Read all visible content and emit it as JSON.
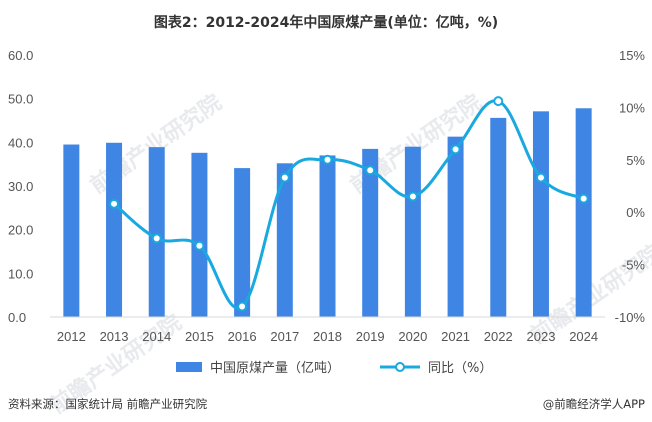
{
  "chart_data": {
    "type": "bar+line",
    "title": "图表2：2012-2024年中国原煤产量(单位：亿吨，%)",
    "categories": [
      "2012",
      "2013",
      "2014",
      "2015",
      "2016",
      "2017",
      "2018",
      "2019",
      "2020",
      "2021",
      "2022",
      "2023",
      "2024"
    ],
    "series": [
      {
        "name": "中国原煤产量（亿吨）",
        "type": "bar",
        "axis": "left",
        "values": [
          39.5,
          39.9,
          38.9,
          37.6,
          34.1,
          35.2,
          37.0,
          38.5,
          39.0,
          41.3,
          45.6,
          47.1,
          47.8
        ]
      },
      {
        "name": "同比（%）",
        "type": "line",
        "axis": "right",
        "values": [
          null,
          0.8,
          -2.5,
          -3.2,
          -9.0,
          3.3,
          5.0,
          4.0,
          1.5,
          6.0,
          10.6,
          3.3,
          1.3
        ]
      }
    ],
    "left_axis": {
      "min": 0,
      "max": 60,
      "ticks": [
        "0.0",
        "10.0",
        "20.0",
        "30.0",
        "40.0",
        "50.0",
        "60.0"
      ]
    },
    "right_axis": {
      "min": -10,
      "max": 15,
      "ticks": [
        "-10%",
        "-5%",
        "0%",
        "5%",
        "10%",
        "15%"
      ]
    },
    "colors": {
      "bar": "#3f86e4",
      "line": "#19a8df"
    }
  },
  "footer": {
    "source": "资料来源：国家统计局 前瞻产业研究院",
    "credit": "@前瞻经济学人APP"
  },
  "watermark": {
    "text": "前瞻产业研究院"
  }
}
